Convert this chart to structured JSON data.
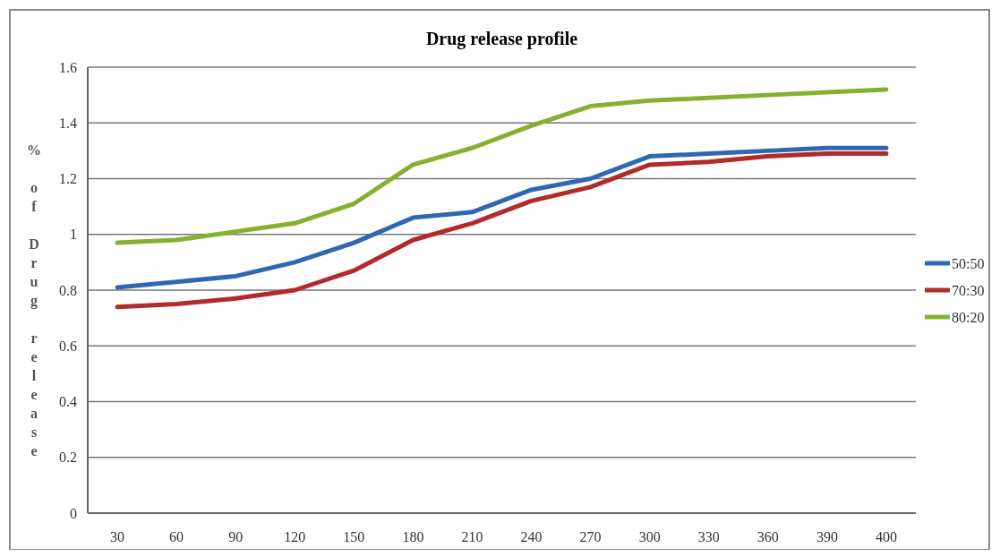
{
  "chart_data": {
    "type": "line",
    "title": "Drug release profile",
    "ylabel": "% of Drug release",
    "categories": [
      "30",
      "60",
      "90",
      "120",
      "150",
      "180",
      "210",
      "240",
      "270",
      "300",
      "330",
      "360",
      "390",
      "400"
    ],
    "series": [
      {
        "name": "50:50",
        "color": "#2e68b4",
        "values": [
          0.81,
          0.83,
          0.85,
          0.9,
          0.97,
          1.06,
          1.08,
          1.16,
          1.2,
          1.28,
          1.29,
          1.3,
          1.31,
          1.31
        ]
      },
      {
        "name": "70:30",
        "color": "#b22a2a",
        "values": [
          0.74,
          0.75,
          0.77,
          0.8,
          0.87,
          0.98,
          1.04,
          1.12,
          1.17,
          1.25,
          1.26,
          1.28,
          1.29,
          1.29
        ]
      },
      {
        "name": "80:20",
        "color": "#86b030",
        "values": [
          0.97,
          0.98,
          1.01,
          1.04,
          1.11,
          1.25,
          1.31,
          1.39,
          1.46,
          1.48,
          1.49,
          1.5,
          1.51,
          1.52
        ]
      }
    ],
    "ylim": [
      0,
      1.6
    ],
    "yticks": [
      0,
      0.2,
      0.4,
      0.6,
      0.8,
      1,
      1.2,
      1.4,
      1.6
    ],
    "grid": "y",
    "legend": "right",
    "line_style": "solid",
    "marker": "none"
  }
}
